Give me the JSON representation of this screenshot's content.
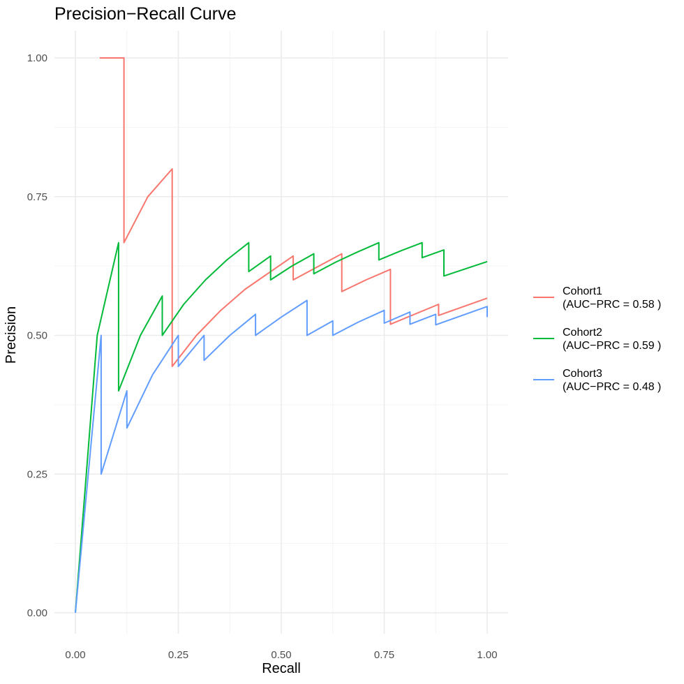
{
  "chart_data": {
    "type": "line",
    "title": "Precision−Recall Curve",
    "xlabel": "Recall",
    "ylabel": "Precision",
    "xlim": [
      0,
      1
    ],
    "ylim": [
      0,
      1
    ],
    "x_ticks": [
      0,
      0.25,
      0.5,
      0.75,
      1
    ],
    "x_tick_labels": [
      "0.00",
      "0.25",
      "0.50",
      "0.75",
      "1.00"
    ],
    "y_ticks": [
      0,
      0.25,
      0.5,
      0.75,
      1
    ],
    "y_tick_labels": [
      "0.00",
      "0.25",
      "0.50",
      "0.75",
      "1.00"
    ],
    "grid": true,
    "legend_position": "right",
    "series": [
      {
        "name": "Cohort1",
        "legend_label": [
          "Cohort1",
          "(AUC−PRC = 0.58 )"
        ],
        "color": "#F8766D",
        "points": [
          [
            0.059,
            1.0
          ],
          [
            0.118,
            1.0
          ],
          [
            0.118,
            0.667
          ],
          [
            0.176,
            0.75
          ],
          [
            0.235,
            0.8
          ],
          [
            0.235,
            0.444
          ],
          [
            0.294,
            0.5
          ],
          [
            0.353,
            0.545
          ],
          [
            0.412,
            0.583
          ],
          [
            0.529,
            0.643
          ],
          [
            0.529,
            0.6
          ],
          [
            0.647,
            0.647
          ],
          [
            0.647,
            0.579
          ],
          [
            0.706,
            0.6
          ],
          [
            0.765,
            0.619
          ],
          [
            0.765,
            0.52
          ],
          [
            0.882,
            0.556
          ],
          [
            0.882,
            0.536
          ],
          [
            1.0,
            0.567
          ]
        ]
      },
      {
        "name": "Cohort2",
        "legend_label": [
          "Cohort2",
          "(AUC−PRC = 0.59 )"
        ],
        "color": "#00BA38",
        "points": [
          [
            0.0,
            0.0
          ],
          [
            0.053,
            0.5
          ],
          [
            0.105,
            0.667
          ],
          [
            0.105,
            0.4
          ],
          [
            0.158,
            0.5
          ],
          [
            0.211,
            0.571
          ],
          [
            0.211,
            0.5
          ],
          [
            0.263,
            0.556
          ],
          [
            0.316,
            0.6
          ],
          [
            0.368,
            0.636
          ],
          [
            0.421,
            0.667
          ],
          [
            0.421,
            0.615
          ],
          [
            0.474,
            0.643
          ],
          [
            0.474,
            0.6
          ],
          [
            0.526,
            0.625
          ],
          [
            0.579,
            0.647
          ],
          [
            0.579,
            0.611
          ],
          [
            0.632,
            0.632
          ],
          [
            0.684,
            0.65
          ],
          [
            0.737,
            0.667
          ],
          [
            0.737,
            0.636
          ],
          [
            0.789,
            0.652
          ],
          [
            0.842,
            0.667
          ],
          [
            0.842,
            0.64
          ],
          [
            0.895,
            0.654
          ],
          [
            0.895,
            0.607
          ],
          [
            1.0,
            0.633
          ]
        ]
      },
      {
        "name": "Cohort3",
        "legend_label": [
          "Cohort3",
          "(AUC−PRC = 0.48 )"
        ],
        "color": "#619CFF",
        "points": [
          [
            0.0,
            0.0
          ],
          [
            0.0625,
            0.5
          ],
          [
            0.0625,
            0.25
          ],
          [
            0.125,
            0.4
          ],
          [
            0.125,
            0.333
          ],
          [
            0.1875,
            0.429
          ],
          [
            0.25,
            0.5
          ],
          [
            0.25,
            0.444
          ],
          [
            0.3125,
            0.5
          ],
          [
            0.3125,
            0.455
          ],
          [
            0.375,
            0.5
          ],
          [
            0.4375,
            0.538
          ],
          [
            0.4375,
            0.5
          ],
          [
            0.5,
            0.533
          ],
          [
            0.5625,
            0.563
          ],
          [
            0.5625,
            0.5
          ],
          [
            0.625,
            0.526
          ],
          [
            0.625,
            0.5
          ],
          [
            0.6875,
            0.524
          ],
          [
            0.75,
            0.545
          ],
          [
            0.75,
            0.522
          ],
          [
            0.8125,
            0.542
          ],
          [
            0.8125,
            0.52
          ],
          [
            0.875,
            0.538
          ],
          [
            0.875,
            0.519
          ],
          [
            1.0,
            0.552
          ],
          [
            1.0,
            0.533
          ]
        ]
      }
    ]
  }
}
